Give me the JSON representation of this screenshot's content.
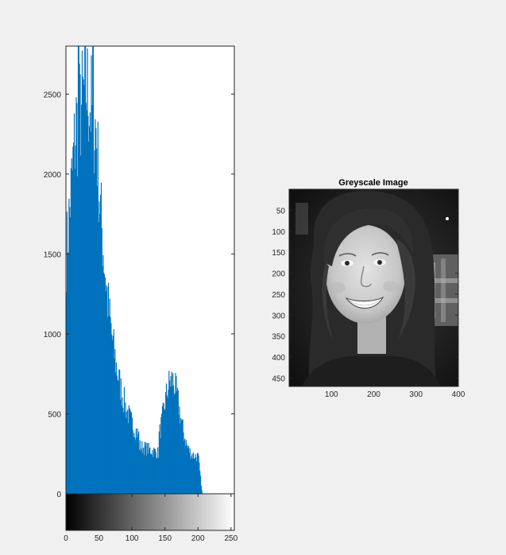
{
  "chart_data": [
    {
      "type": "bar",
      "title": "",
      "xlabel": "",
      "ylabel": "",
      "xlim": [
        0,
        255
      ],
      "ylim": [
        0,
        2800
      ],
      "yticks": [
        0,
        500,
        1000,
        1500,
        2000,
        2500
      ],
      "xticks": [
        0,
        50,
        100,
        150,
        200,
        250
      ],
      "bar_color": "#0072bd",
      "colorbar": "grayscale gradient 0-255",
      "grid": false,
      "legend": "none",
      "description": "Histogram of greyscale pixel intensities (counts per gray level 0..255)",
      "peaks": [
        {
          "gray": 18,
          "count": 2790
        },
        {
          "gray": 40,
          "count": 2790
        },
        {
          "gray": 160,
          "count": 730
        }
      ]
    },
    {
      "type": "image",
      "title": "Greyscale Image",
      "xlim": [
        0,
        400
      ],
      "ylim": [
        0,
        470
      ],
      "xticks": [
        100,
        200,
        300,
        400
      ],
      "yticks": [
        50,
        100,
        150,
        200,
        250,
        300,
        350,
        400,
        450
      ],
      "description": "Greyscale photo of a smiling woman with long hair"
    }
  ]
}
